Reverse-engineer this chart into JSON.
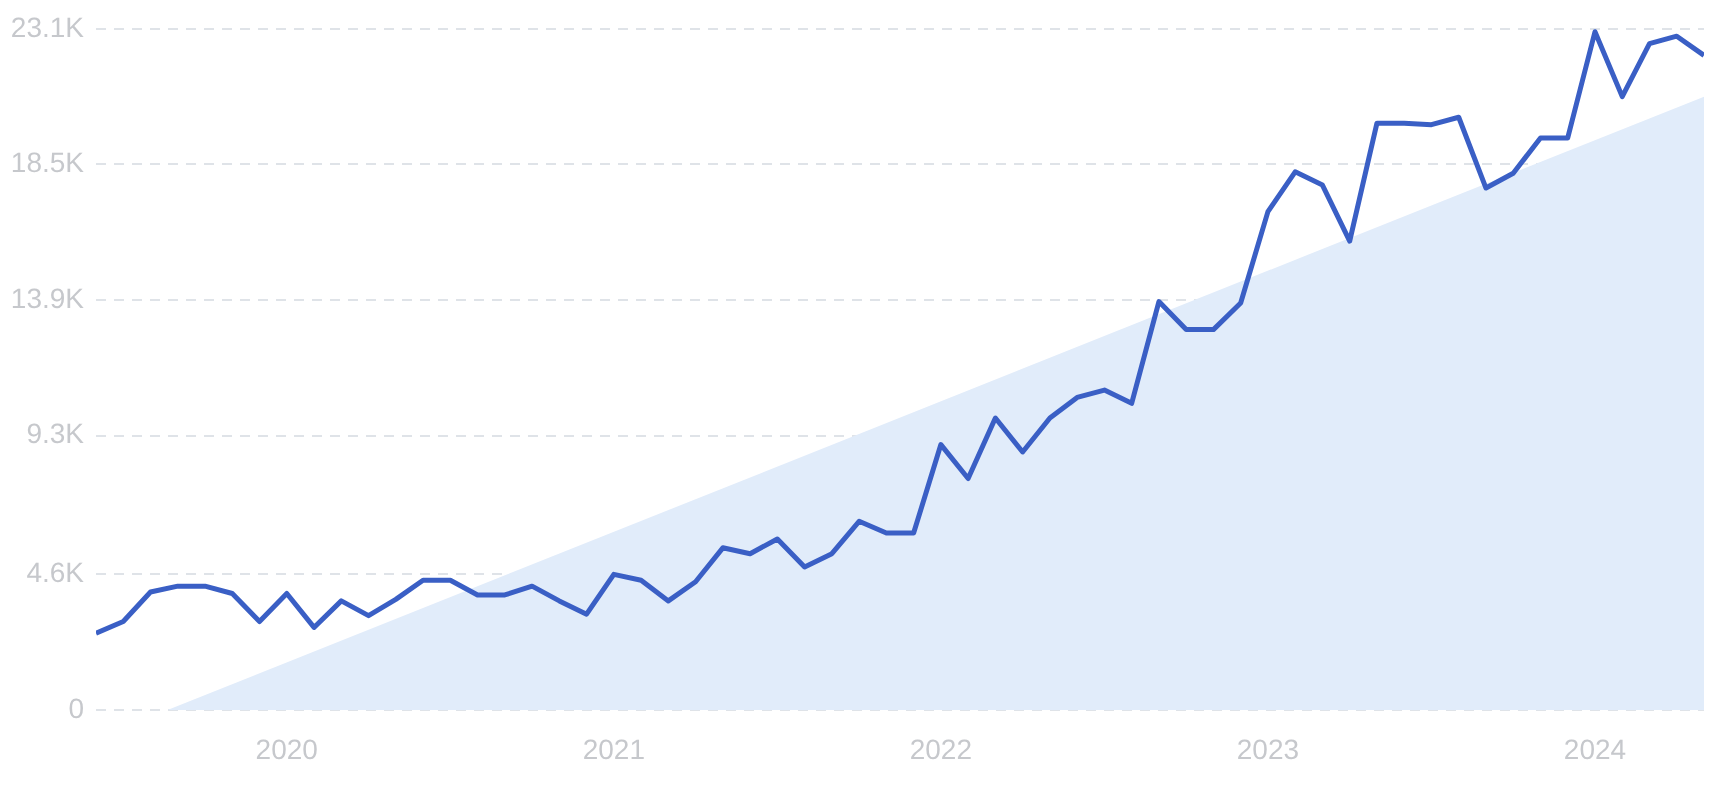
{
  "chart_data": {
    "type": "line",
    "x": [
      "2019-06",
      "2019-07",
      "2019-08",
      "2019-09",
      "2019-10",
      "2019-11",
      "2019-12",
      "2020-01",
      "2020-02",
      "2020-03",
      "2020-04",
      "2020-05",
      "2020-06",
      "2020-07",
      "2020-08",
      "2020-09",
      "2020-10",
      "2020-11",
      "2020-12",
      "2021-01",
      "2021-02",
      "2021-03",
      "2021-04",
      "2021-05",
      "2021-06",
      "2021-07",
      "2021-08",
      "2021-09",
      "2021-10",
      "2021-11",
      "2021-12",
      "2022-01",
      "2022-02",
      "2022-03",
      "2022-04",
      "2022-05",
      "2022-06",
      "2022-07",
      "2022-08",
      "2022-09",
      "2022-10",
      "2022-11",
      "2022-12",
      "2023-01",
      "2023-02",
      "2023-03",
      "2023-04",
      "2023-05",
      "2023-06",
      "2023-07",
      "2023-08",
      "2023-09",
      "2023-10",
      "2023-11",
      "2023-12",
      "2024-01",
      "2024-02",
      "2024-03",
      "2024-04",
      "2024-05"
    ],
    "series": [
      {
        "type": "area",
        "color": "#e1ecfa",
        "x": [
          "2019-08-20",
          "2024-05"
        ],
        "values": [
          0,
          20800
        ]
      },
      {
        "color": "#3a5fc5",
        "values": [
          2600,
          3000,
          4000,
          4200,
          4200,
          3950,
          3000,
          3950,
          2800,
          3700,
          3200,
          3750,
          4400,
          4400,
          3900,
          3900,
          4200,
          3700,
          3250,
          4600,
          4400,
          3700,
          4350,
          5500,
          5300,
          5800,
          4850,
          5300,
          6400,
          6000,
          6000,
          9000,
          7850,
          9900,
          8750,
          9900,
          10600,
          10850,
          10400,
          13850,
          12900,
          12900,
          13800,
          16900,
          18250,
          17800,
          15900,
          19900,
          19900,
          19850,
          20100,
          17700,
          18200,
          19400,
          19400,
          23000,
          20800,
          22600,
          22850,
          22200
        ]
      }
    ],
    "xlim": [
      "2019-06",
      "2024-05"
    ],
    "xticks": [
      {
        "value": "2020-01",
        "label": "2020"
      },
      {
        "value": "2021-01",
        "label": "2021"
      },
      {
        "value": "2022-01",
        "label": "2022"
      },
      {
        "value": "2023-01",
        "label": "2023"
      },
      {
        "value": "2024-01",
        "label": "2024"
      }
    ],
    "ylim": [
      0,
      23100
    ],
    "yticks": [
      0,
      {
        "value": 4600,
        "label": "4.6K"
      },
      {
        "value": 9300,
        "label": "9.3K"
      },
      {
        "value": 13900,
        "label": "13.9K"
      },
      {
        "value": 18500,
        "label": "18.5K"
      },
      {
        "value": 23100,
        "label": "23.1K"
      }
    ],
    "grid": "y",
    "line_style": "solid",
    "marker": "none",
    "legend": false
  }
}
